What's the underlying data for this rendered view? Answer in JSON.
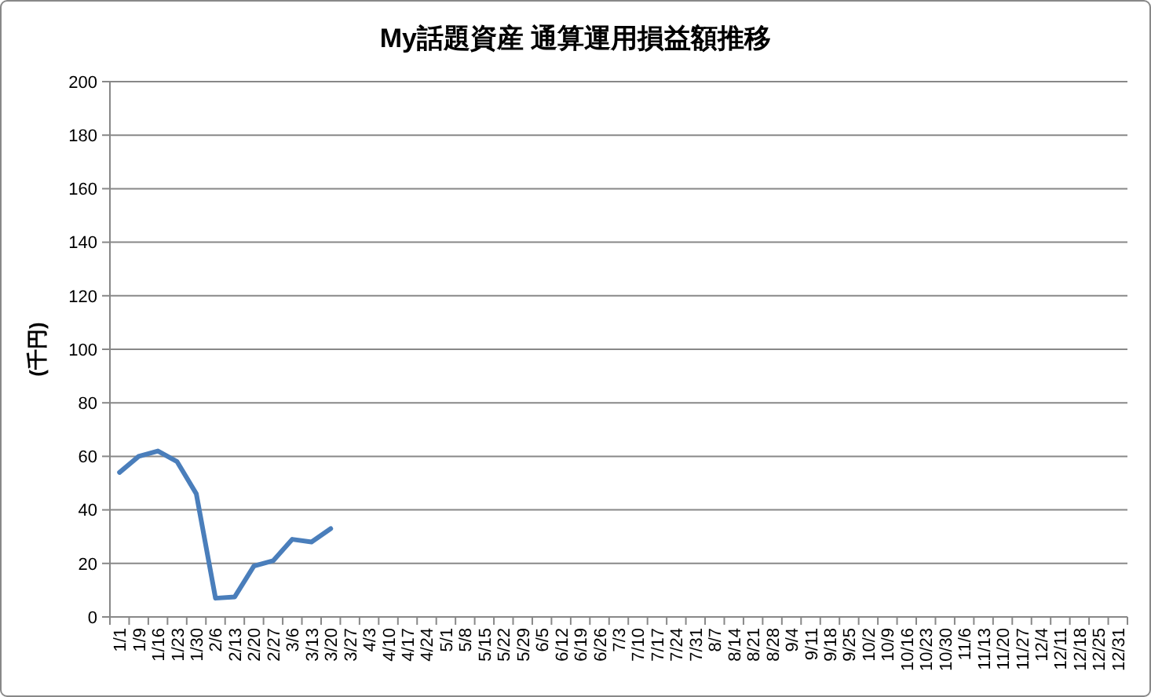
{
  "chart_data": {
    "type": "line",
    "title": "My話題資産 通算運用損益額推移",
    "ylabel": "(千円)",
    "categories": [
      "1/1",
      "1/9",
      "1/16",
      "1/23",
      "1/30",
      "2/6",
      "2/13",
      "2/20",
      "2/27",
      "3/6",
      "3/13",
      "3/20",
      "3/27",
      "4/3",
      "4/10",
      "4/17",
      "4/24",
      "5/1",
      "5/8",
      "5/15",
      "5/22",
      "5/29",
      "6/5",
      "6/12",
      "6/19",
      "6/26",
      "7/3",
      "7/10",
      "7/17",
      "7/24",
      "7/31",
      "8/7",
      "8/14",
      "8/21",
      "8/28",
      "9/4",
      "9/11",
      "9/18",
      "9/25",
      "10/2",
      "10/9",
      "10/16",
      "10/23",
      "10/30",
      "11/6",
      "11/13",
      "11/20",
      "11/27",
      "12/4",
      "12/11",
      "12/18",
      "12/25",
      "12/31"
    ],
    "series": [
      {
        "color": "#4a7ebb",
        "values": [
          54,
          60,
          62,
          58,
          46,
          7,
          7.5,
          19,
          21,
          29,
          28,
          33,
          null,
          null,
          null,
          null,
          null,
          null,
          null,
          null,
          null,
          null,
          null,
          null,
          null,
          null,
          null,
          null,
          null,
          null,
          null,
          null,
          null,
          null,
          null,
          null,
          null,
          null,
          null,
          null,
          null,
          null,
          null,
          null,
          null,
          null,
          null,
          null,
          null,
          null,
          null,
          null,
          null
        ]
      }
    ],
    "ylim": [
      0,
      200
    ],
    "yticks": [
      0,
      20,
      40,
      60,
      80,
      100,
      120,
      140,
      160,
      180,
      200
    ],
    "grid": "y"
  }
}
